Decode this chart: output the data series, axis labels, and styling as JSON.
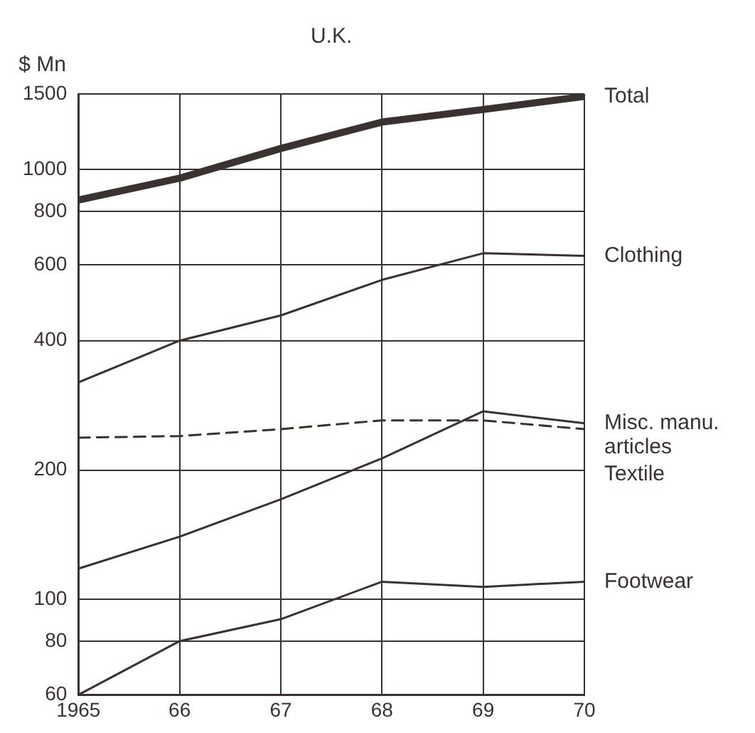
{
  "chart_data": {
    "type": "line",
    "title": "U.K.",
    "ylabel": "$ Mn",
    "x": [
      1965,
      1966,
      1967,
      1968,
      1969,
      1970
    ],
    "xlim": [
      1965,
      1970
    ],
    "xticks": [
      1965,
      {
        "value": 1966,
        "label": "66"
      },
      {
        "value": 1967,
        "label": "67"
      },
      {
        "value": 1968,
        "label": "68"
      },
      {
        "value": 1969,
        "label": "69"
      },
      {
        "value": 1970,
        "label": "70"
      }
    ],
    "ylim": [
      60,
      1500
    ],
    "yticks": [
      60,
      80,
      100,
      200,
      400,
      600,
      800,
      1000,
      1500
    ],
    "log": "y",
    "grid": true,
    "legend": false,
    "marker": "none",
    "series": [
      {
        "name": "Total",
        "color": "#3a3230",
        "values": [
          850,
          955,
          1120,
          1290,
          1380,
          1480
        ],
        "line_style": "solid"
      },
      {
        "name": "Clothing",
        "color": "#3a3230",
        "values": [
          320,
          400,
          458,
          554,
          639,
          630
        ],
        "line_style": "solid"
      },
      {
        "name": "Misc. manu. articles",
        "color": "#3a3230",
        "values": [
          118,
          140,
          171,
          213,
          274,
          257
        ],
        "line_style": "solid"
      },
      {
        "name": "Textile",
        "color": "#3a3230",
        "values": [
          238,
          240,
          249,
          261,
          261,
          249
        ],
        "line_style": "dashed"
      },
      {
        "name": "Footwear",
        "color": "#3a3230",
        "values": [
          60,
          80,
          90,
          110,
          107,
          110
        ],
        "line_style": "solid"
      }
    ]
  }
}
